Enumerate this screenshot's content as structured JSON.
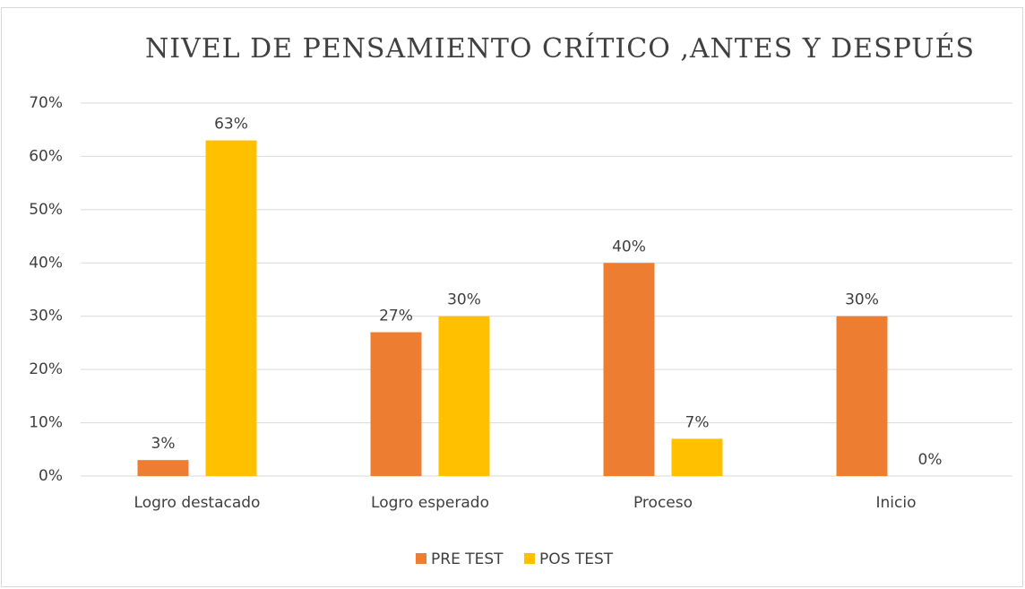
{
  "chart_data": {
    "type": "bar",
    "title": "NIVEL DE PENSAMIENTO CRÍTICO ,ANTES Y DESPUÉS",
    "categories": [
      "Logro destacado",
      "Logro esperado",
      "Proceso",
      "Inicio"
    ],
    "series": [
      {
        "name": "PRE TEST",
        "color": "#ed7d31",
        "values": [
          3,
          27,
          40,
          30
        ],
        "value_labels": [
          "3%",
          "27%",
          "40%",
          "30%"
        ]
      },
      {
        "name": "POS TEST",
        "color": "#ffc000",
        "values": [
          63,
          30,
          7,
          0
        ],
        "value_labels": [
          "63%",
          "30%",
          "7%",
          "0%"
        ]
      }
    ],
    "ylim": [
      0,
      70
    ],
    "yticks": [
      {
        "value": 0,
        "label": "0%"
      },
      {
        "value": 10,
        "label": "10%"
      },
      {
        "value": 20,
        "label": "20%"
      },
      {
        "value": 30,
        "label": "30%"
      },
      {
        "value": 40,
        "label": "40%"
      },
      {
        "value": 50,
        "label": "50%"
      },
      {
        "value": 60,
        "label": "60%"
      },
      {
        "value": 70,
        "label": "70%"
      }
    ],
    "grid": true,
    "legend": "bottom"
  }
}
